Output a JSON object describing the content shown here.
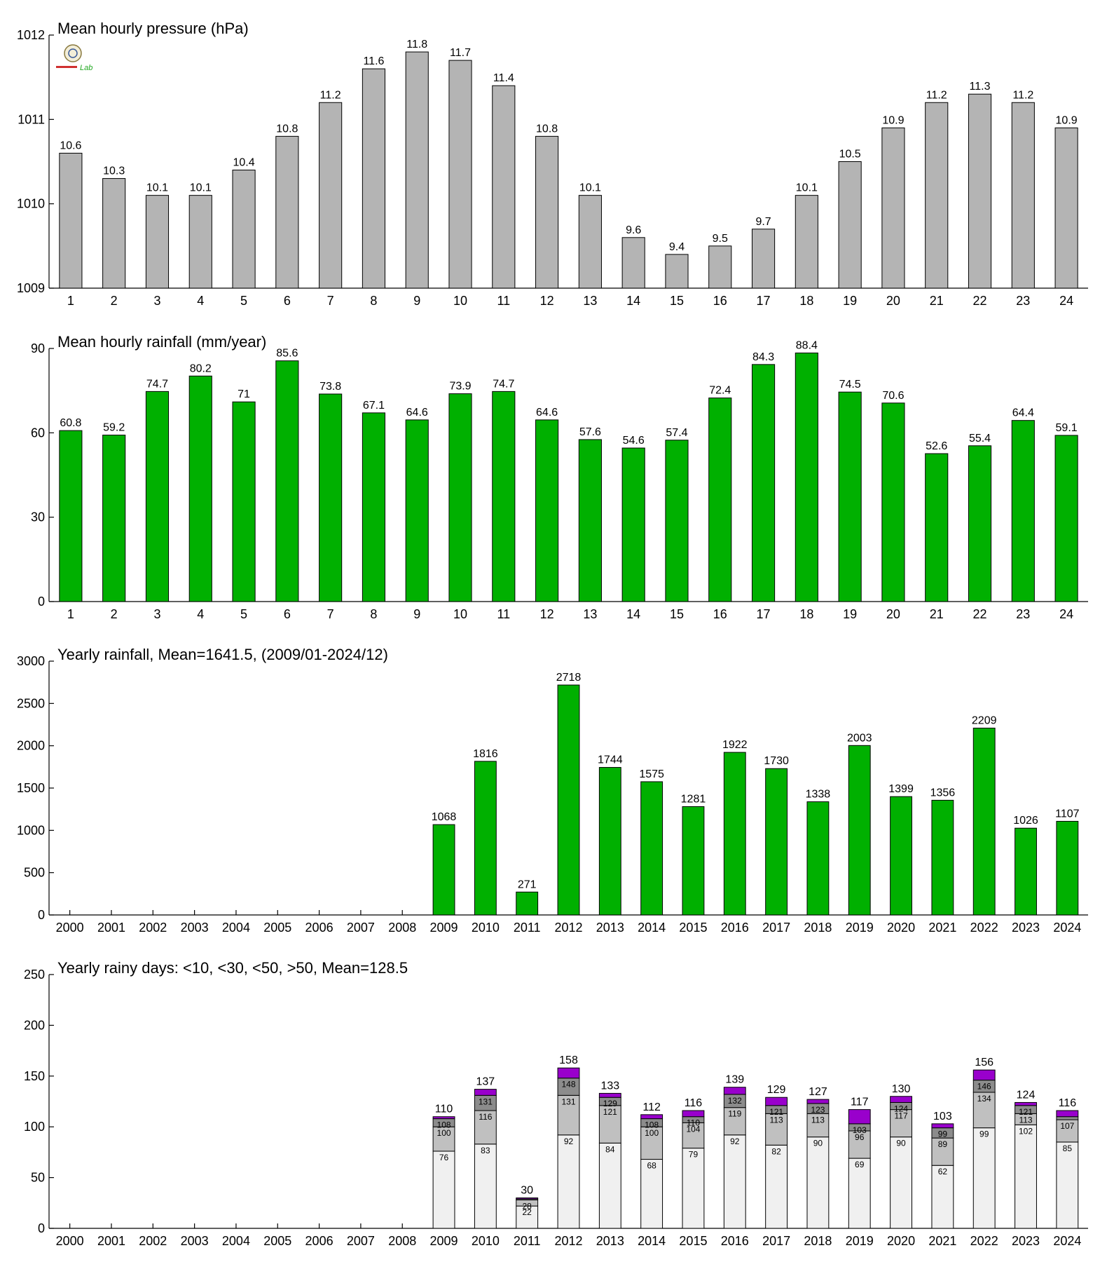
{
  "colors": {
    "pressure_bar": "#b4b4b4",
    "rain_bar": "#00b000",
    "days_lt10": "#f0f0f0",
    "days_lt30": "#c0c0c0",
    "days_lt50": "#8c8c8c",
    "days_gt50": "#9900cc"
  },
  "logo_text": "Lab",
  "chart_data": [
    {
      "type": "bar",
      "title": "Mean hourly pressure (hPa)",
      "categories": [
        "1",
        "2",
        "3",
        "4",
        "5",
        "6",
        "7",
        "8",
        "9",
        "10",
        "11",
        "12",
        "13",
        "14",
        "15",
        "16",
        "17",
        "18",
        "19",
        "20",
        "21",
        "22",
        "23",
        "24"
      ],
      "values": [
        1010.6,
        1010.3,
        1010.1,
        1010.1,
        1010.4,
        1010.8,
        1011.2,
        1011.6,
        1011.8,
        1011.7,
        1011.4,
        1010.8,
        1010.1,
        1009.6,
        1009.4,
        1009.5,
        1009.7,
        1010.1,
        1010.5,
        1010.9,
        1011.2,
        1011.3,
        1011.2,
        1010.9
      ],
      "labels": [
        "10.6",
        "10.3",
        "10.1",
        "10.1",
        "10.4",
        "10.8",
        "11.2",
        "11.6",
        "11.8",
        "11.7",
        "11.4",
        "10.8",
        "10.1",
        "9.6",
        "9.4",
        "9.5",
        "9.7",
        "10.1",
        "10.5",
        "10.9",
        "11.2",
        "11.3",
        "11.2",
        "10.9"
      ],
      "ylim": [
        1009,
        1012
      ],
      "yticks": [
        1009,
        1010,
        1011,
        1012
      ],
      "grid": false
    },
    {
      "type": "bar",
      "title": "Mean hourly rainfall (mm/year)",
      "categories": [
        "1",
        "2",
        "3",
        "4",
        "5",
        "6",
        "7",
        "8",
        "9",
        "10",
        "11",
        "12",
        "13",
        "14",
        "15",
        "16",
        "17",
        "18",
        "19",
        "20",
        "21",
        "22",
        "23",
        "24"
      ],
      "values": [
        60.8,
        59.2,
        74.7,
        80.2,
        71,
        85.6,
        73.8,
        67.1,
        64.6,
        73.9,
        74.7,
        64.6,
        57.6,
        54.6,
        57.4,
        72.4,
        84.3,
        88.4,
        74.5,
        70.6,
        52.6,
        55.4,
        64.4,
        59.1
      ],
      "labels": [
        "60.8",
        "59.2",
        "74.7",
        "80.2",
        "71",
        "85.6",
        "73.8",
        "67.1",
        "64.6",
        "73.9",
        "74.7",
        "64.6",
        "57.6",
        "54.6",
        "57.4",
        "72.4",
        "84.3",
        "88.4",
        "74.5",
        "70.6",
        "52.6",
        "55.4",
        "64.4",
        "59.1"
      ],
      "ylim": [
        0,
        90
      ],
      "yticks": [
        0,
        30,
        60,
        90
      ],
      "grid": false
    },
    {
      "type": "bar",
      "title": "Yearly rainfall, Mean=1641.5, (2009/01-2024/12)",
      "categories": [
        "2000",
        "2001",
        "2002",
        "2003",
        "2004",
        "2005",
        "2006",
        "2007",
        "2008",
        "2009",
        "2010",
        "2011",
        "2012",
        "2013",
        "2014",
        "2015",
        "2016",
        "2017",
        "2018",
        "2019",
        "2020",
        "2021",
        "2022",
        "2023",
        "2024"
      ],
      "values": [
        null,
        null,
        null,
        null,
        null,
        null,
        null,
        null,
        null,
        1068,
        1816,
        271,
        2718,
        1744,
        1575,
        1281,
        1922,
        1730,
        1338,
        2003,
        1399,
        1356,
        2209,
        1026,
        1107
      ],
      "labels": [
        "",
        "",
        "",
        "",
        "",
        "",
        "",
        "",
        "",
        "1068",
        "1816",
        "271",
        "2718",
        "1744",
        "1575",
        "1281",
        "1922",
        "1730",
        "1338",
        "2003",
        "1399",
        "1356",
        "2209",
        "1026",
        "1107"
      ],
      "ylim": [
        0,
        3000
      ],
      "yticks": [
        0,
        500,
        1000,
        1500,
        2000,
        2500,
        3000
      ],
      "grid": false
    },
    {
      "type": "bar",
      "stacked": true,
      "title": "Yearly rainy days: <10, <30, <50, >50, Mean=128.5",
      "categories": [
        "2000",
        "2001",
        "2002",
        "2003",
        "2004",
        "2005",
        "2006",
        "2007",
        "2008",
        "2009",
        "2010",
        "2011",
        "2012",
        "2013",
        "2014",
        "2015",
        "2016",
        "2017",
        "2018",
        "2019",
        "2020",
        "2021",
        "2022",
        "2023",
        "2024"
      ],
      "cumulative": {
        "lt10": [
          null,
          null,
          null,
          null,
          null,
          null,
          null,
          null,
          null,
          76,
          83,
          22,
          92,
          84,
          68,
          79,
          92,
          82,
          90,
          69,
          90,
          62,
          99,
          102,
          85
        ],
        "lt30": [
          null,
          null,
          null,
          null,
          null,
          null,
          null,
          null,
          null,
          100,
          116,
          28,
          131,
          121,
          100,
          104,
          119,
          113,
          113,
          96,
          117,
          89,
          134,
          113,
          107
        ],
        "lt50": [
          null,
          null,
          null,
          null,
          null,
          null,
          null,
          null,
          null,
          108,
          131,
          29,
          148,
          129,
          108,
          110,
          132,
          121,
          123,
          103,
          124,
          99,
          146,
          121,
          110
        ],
        "total": [
          null,
          null,
          null,
          null,
          null,
          null,
          null,
          null,
          null,
          110,
          137,
          30,
          158,
          133,
          112,
          116,
          139,
          129,
          127,
          117,
          130,
          103,
          156,
          124,
          116
        ]
      },
      "labels": {
        "lt10": [
          "",
          "",
          "",
          "",
          "",
          "",
          "",
          "",
          "",
          "76",
          "83",
          "22",
          "92",
          "84",
          "68",
          "79",
          "92",
          "82",
          "90",
          "69",
          "90",
          "62",
          "99",
          "102",
          "85"
        ],
        "lt30": [
          "",
          "",
          "",
          "",
          "",
          "",
          "",
          "",
          "",
          "100",
          "116",
          "28",
          "131",
          "121",
          "100",
          "104",
          "119",
          "113",
          "113",
          "96",
          "117",
          "89",
          "134",
          "113",
          "107"
        ],
        "lt50": [
          "",
          "",
          "",
          "",
          "",
          "",
          "",
          "",
          "",
          "108",
          "131",
          "",
          "148",
          "129",
          "108",
          "110",
          "132",
          "121",
          "123",
          "103",
          "124",
          "99",
          "146",
          "121",
          ""
        ],
        "total": [
          "",
          "",
          "",
          "",
          "",
          "",
          "",
          "",
          "",
          "110",
          "137",
          "30",
          "158",
          "133",
          "112",
          "116",
          "139",
          "129",
          "127",
          "117",
          "130",
          "103",
          "156",
          "124",
          "116"
        ]
      },
      "ylim": [
        0,
        250
      ],
      "yticks": [
        0,
        50,
        100,
        150,
        200,
        250
      ],
      "grid": false
    }
  ]
}
